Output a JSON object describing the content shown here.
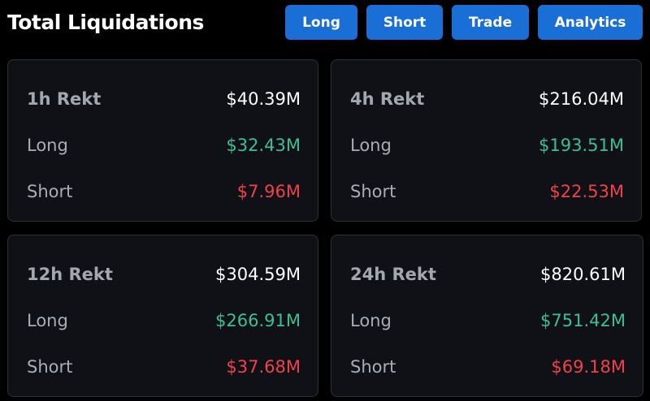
{
  "header": {
    "title": "Total Liquidations"
  },
  "nav": {
    "buttons": [
      {
        "label": "Long"
      },
      {
        "label": "Short"
      },
      {
        "label": "Trade"
      },
      {
        "label": "Analytics"
      }
    ]
  },
  "colors": {
    "accent_button": "#1a6fd6",
    "long_green": "#3ebf90",
    "short_red": "#f0424a",
    "card_bg": "#0f1116",
    "page_bg": "#000000"
  },
  "cards": [
    {
      "period": "1h Rekt",
      "total": "$40.39M",
      "long_label": "Long",
      "long": "$32.43M",
      "short_label": "Short",
      "short": "$7.96M"
    },
    {
      "period": "4h Rekt",
      "total": "$216.04M",
      "long_label": "Long",
      "long": "$193.51M",
      "short_label": "Short",
      "short": "$22.53M"
    },
    {
      "period": "12h Rekt",
      "total": "$304.59M",
      "long_label": "Long",
      "long": "$266.91M",
      "short_label": "Short",
      "short": "$37.68M"
    },
    {
      "period": "24h Rekt",
      "total": "$820.61M",
      "long_label": "Long",
      "long": "$751.42M",
      "short_label": "Short",
      "short": "$69.18M"
    }
  ]
}
